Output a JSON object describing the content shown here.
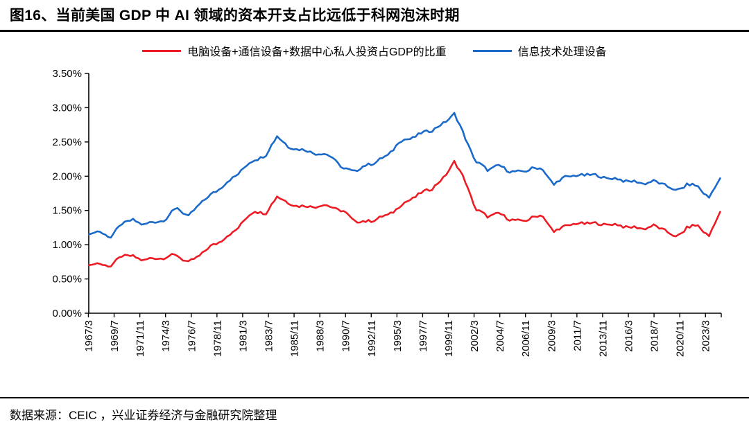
{
  "header": {
    "title": "图16、当前美国 GDP 中 AI 领域的资本开支占比远低于科网泡沫时期"
  },
  "footer": {
    "source": "数据来源：CEIC ，兴业证券经济与金融研究院整理"
  },
  "chart_data": {
    "type": "line",
    "title": "图16、当前美国 GDP 中 AI 领域的资本开支占比远低于科网泡沫时期",
    "xlabel": "",
    "ylabel": "",
    "legend_position": "top",
    "grid": false,
    "ylim": [
      0,
      3.5
    ],
    "ytick_labels": [
      "0.00%",
      "0.50%",
      "1.00%",
      "1.50%",
      "2.00%",
      "2.50%",
      "3.00%",
      "3.50%"
    ],
    "x_tick_labels": [
      "1967/3",
      "1969/7",
      "1971/11",
      "1974/3",
      "1976/7",
      "1978/11",
      "1981/3",
      "1983/7",
      "1985/11",
      "1988/3",
      "1990/7",
      "1992/11",
      "1995/3",
      "1997/7",
      "1999/11",
      "2002/3",
      "2004/7",
      "2006/11",
      "2009/3",
      "2011/7",
      "2013/11",
      "2016/3",
      "2018/7",
      "2020/11",
      "2023/3"
    ],
    "x_domain": [
      1967.2,
      2024.6
    ],
    "x_data_range": [
      1967.2,
      2024.5
    ],
    "x_years": [
      1967,
      1968,
      1969,
      1970,
      1971,
      1972,
      1973,
      1974,
      1975,
      1976,
      1977,
      1978,
      1979,
      1980,
      1981,
      1982,
      1983,
      1984,
      1985,
      1986,
      1987,
      1988,
      1989,
      1990,
      1991,
      1992,
      1993,
      1994,
      1995,
      1996,
      1997,
      1998,
      1999,
      2000,
      2001,
      2002,
      2003,
      2004,
      2005,
      2006,
      2007,
      2008,
      2009,
      2010,
      2011,
      2012,
      2013,
      2014,
      2015,
      2016,
      2017,
      2018,
      2019,
      2020,
      2021,
      2022,
      2023,
      2024
    ],
    "series": [
      {
        "name": "信息技术处理设备",
        "color": "#1b6ac9",
        "values": [
          1.15,
          1.2,
          1.1,
          1.32,
          1.35,
          1.3,
          1.33,
          1.38,
          1.55,
          1.4,
          1.6,
          1.72,
          1.85,
          1.97,
          2.12,
          2.25,
          2.3,
          2.6,
          2.42,
          2.4,
          2.35,
          2.33,
          2.28,
          2.1,
          2.08,
          2.15,
          2.22,
          2.3,
          2.5,
          2.55,
          2.62,
          2.68,
          2.76,
          2.92,
          2.55,
          2.2,
          2.1,
          2.15,
          2.08,
          2.05,
          2.12,
          2.1,
          1.87,
          2.0,
          2.0,
          2.03,
          2.0,
          1.97,
          1.95,
          1.92,
          1.9,
          1.92,
          1.88,
          1.78,
          1.88,
          1.85,
          1.68,
          1.97
        ]
      },
      {
        "name": "电脑设备+通信设备+数据中心私人投资占GDP的比重",
        "color": "#ed1c24",
        "values": [
          0.7,
          0.73,
          0.68,
          0.85,
          0.82,
          0.78,
          0.8,
          0.82,
          0.85,
          0.73,
          0.85,
          0.97,
          1.07,
          1.17,
          1.35,
          1.5,
          1.45,
          1.72,
          1.6,
          1.57,
          1.55,
          1.58,
          1.55,
          1.48,
          1.35,
          1.33,
          1.38,
          1.43,
          1.55,
          1.66,
          1.75,
          1.83,
          1.96,
          2.22,
          1.92,
          1.5,
          1.42,
          1.45,
          1.38,
          1.33,
          1.4,
          1.42,
          1.18,
          1.28,
          1.3,
          1.32,
          1.3,
          1.3,
          1.28,
          1.25,
          1.24,
          1.27,
          1.22,
          1.1,
          1.25,
          1.28,
          1.12,
          1.48
        ]
      }
    ]
  }
}
